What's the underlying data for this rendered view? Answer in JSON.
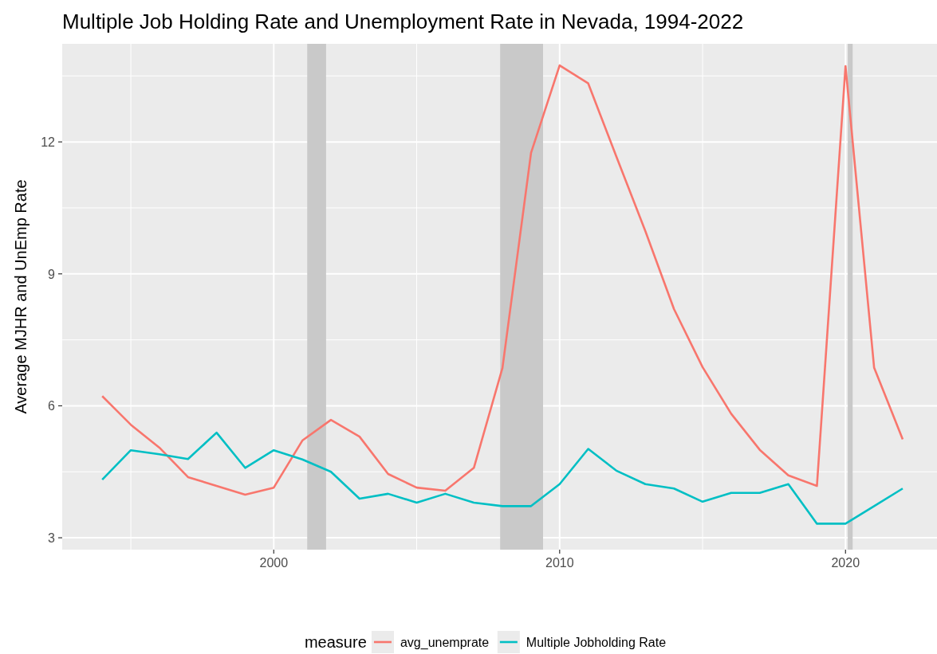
{
  "chart_data": {
    "type": "line",
    "title": "Multiple Job Holding Rate and Unemployment Rate in Nevada, 1994-2022",
    "ylabel": "Average MJHR and UnEmp Rate",
    "legend_title": "measure",
    "legend": "bottom",
    "grid": true,
    "x": [
      1994,
      1995,
      1996,
      1997,
      1998,
      1999,
      2000,
      2001,
      2002,
      2003,
      2004,
      2005,
      2006,
      2007,
      2008,
      2009,
      2010,
      2011,
      2012,
      2013,
      2014,
      2015,
      2016,
      2017,
      2018,
      2019,
      2020,
      2021,
      2022
    ],
    "series": [
      {
        "name": "avg_unemprate",
        "color": "#f8766d",
        "values": [
          6.22,
          5.57,
          5.05,
          4.38,
          4.18,
          3.98,
          4.14,
          5.21,
          5.68,
          5.3,
          4.45,
          4.14,
          4.07,
          4.59,
          6.86,
          11.75,
          13.74,
          13.33,
          11.64,
          9.97,
          8.2,
          6.88,
          5.82,
          5.0,
          4.42,
          4.18,
          13.72,
          6.87,
          5.24
        ]
      },
      {
        "name": "Multiple Jobholding Rate",
        "color": "#00bfc4",
        "values": [
          4.32,
          4.99,
          4.9,
          4.79,
          5.39,
          4.59,
          4.99,
          4.78,
          4.5,
          3.89,
          4.0,
          3.8,
          4.0,
          3.8,
          3.72,
          3.72,
          4.22,
          5.02,
          4.52,
          4.22,
          4.12,
          3.82,
          4.02,
          4.02,
          4.22,
          3.32,
          3.32,
          3.72,
          4.12
        ]
      }
    ],
    "xlim": [
      1992.6,
      2023.2
    ],
    "ylim": [
      2.73,
      14.23
    ],
    "xticks": [
      {
        "value": 1995,
        "label": null
      },
      2000,
      {
        "value": 2005,
        "label": null
      },
      2010,
      {
        "value": 2015,
        "label": null
      },
      2020
    ],
    "yticks": [
      3,
      {
        "value": 4.5,
        "label": null
      },
      6,
      {
        "value": 7.5,
        "label": null
      },
      9,
      {
        "value": 10.5,
        "label": null
      },
      12,
      {
        "value": 13.5,
        "label": null
      }
    ],
    "bands": [
      {
        "axis": "x",
        "from": 2001.17,
        "to": 2001.83,
        "color": "#c9c9c9"
      },
      {
        "axis": "x",
        "from": 2007.92,
        "to": 2009.42,
        "color": "#c9c9c9"
      },
      {
        "axis": "x",
        "from": 2020.08,
        "to": 2020.25,
        "color": "#c9c9c9"
      }
    ]
  }
}
